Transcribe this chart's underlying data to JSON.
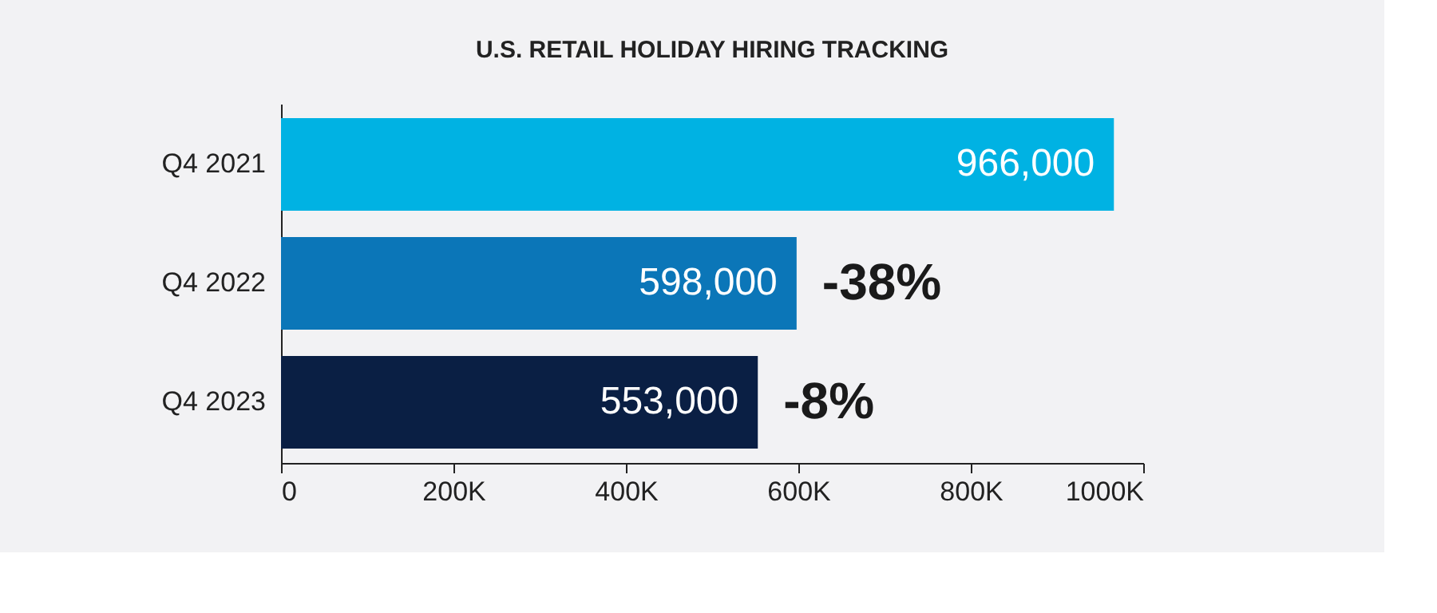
{
  "chart_data": {
    "type": "bar",
    "orientation": "horizontal",
    "title": "U.S. RETAIL HOLIDAY HIRING TRACKING",
    "categories": [
      "Q4 2021",
      "Q4 2022",
      "Q4 2023"
    ],
    "values": [
      966000,
      598000,
      553000
    ],
    "colors": [
      "#00b2e3",
      "#0b76b8",
      "#0a1f44"
    ],
    "value_labels": [
      "966,000",
      "598,000",
      "553,000"
    ],
    "xlim": [
      0,
      1000000
    ],
    "xticks": [
      0,
      {
        "value": 200000,
        "label": "200K"
      },
      {
        "value": 400000,
        "label": "400K"
      },
      {
        "value": 600000,
        "label": "600K"
      },
      {
        "value": 800000,
        "label": "800K"
      },
      {
        "value": 1000000,
        "label": "1000K"
      }
    ],
    "annotations": [
      {
        "text": "-38%",
        "x": 598000,
        "y": "Q4 2022"
      },
      {
        "text": "-8%",
        "x": 553000,
        "y": "Q4 2023"
      }
    ],
    "grid": false
  }
}
